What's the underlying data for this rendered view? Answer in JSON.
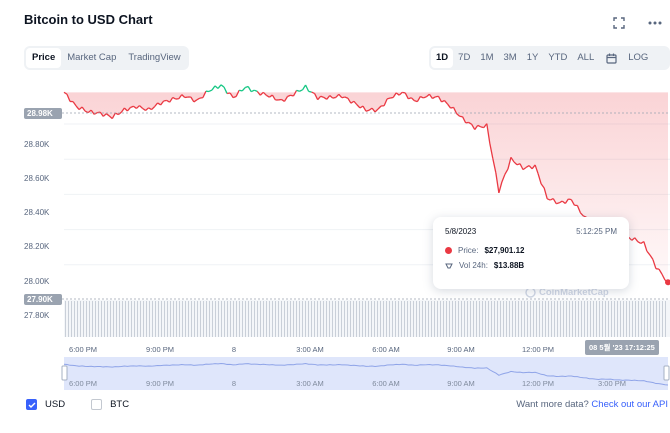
{
  "header": {
    "title": "Bitcoin to USD Chart",
    "fullscreen_icon": "fullscreen-icon",
    "more_icon": "more-horizontal-icon"
  },
  "view_tabs": [
    {
      "label": "Price",
      "active": true
    },
    {
      "label": "Market Cap",
      "active": false
    },
    {
      "label": "TradingView",
      "active": false
    }
  ],
  "range_tabs": [
    {
      "label": "1D",
      "active": true
    },
    {
      "label": "7D",
      "active": false
    },
    {
      "label": "1M",
      "active": false
    },
    {
      "label": "3M",
      "active": false
    },
    {
      "label": "1Y",
      "active": false
    },
    {
      "label": "YTD",
      "active": false
    },
    {
      "label": "ALL",
      "active": false
    }
  ],
  "calendar_icon": "calendar-icon",
  "log_label": "LOG",
  "y_axis": {
    "ticks": [
      "28.80K",
      "28.60K",
      "28.40K",
      "28.20K",
      "28.00K"
    ],
    "open_tag": "28.98K",
    "current_tag": "27.90K",
    "volume_tick": "27.80K"
  },
  "x_axis": {
    "ticks": [
      "6:00 PM",
      "9:00 PM",
      "8",
      "3:00 AM",
      "6:00 AM",
      "9:00 AM",
      "12:00 PM"
    ],
    "current_date_tag": "08 5월 '23   17:12:25"
  },
  "navigator_axis": [
    "6:00 PM",
    "9:00 PM",
    "8",
    "3:00 AM",
    "6:00 AM",
    "9:00 AM",
    "12:00 PM",
    "3:00 PM"
  ],
  "tooltip": {
    "date": "5/8/2023",
    "time": "5:12:25 PM",
    "price_label": "Price:",
    "price_value": "$27,901.12",
    "vol_label": "Vol 24h:",
    "vol_value": "$13.88B"
  },
  "watermark": "CoinMarketCap",
  "legend": {
    "usd": "USD",
    "btc": "BTC"
  },
  "footer": {
    "prompt": "Want more data?",
    "link": "Check out our API"
  },
  "colors": {
    "up": "#16c784",
    "down": "#ea3943",
    "accent": "#3861fb"
  },
  "chart_data": {
    "type": "line",
    "ylim": [
      27800,
      29050
    ],
    "open_price": 28980,
    "current_price": 27901.12,
    "series": [
      {
        "x": [
          0,
          0.02,
          0.04,
          0.06,
          0.08,
          0.1,
          0.12,
          0.14,
          0.16,
          0.18,
          0.2,
          0.22,
          0.24,
          0.26,
          0.28,
          0.3,
          0.32,
          0.34,
          0.36,
          0.38,
          0.4,
          0.42,
          0.44,
          0.46,
          0.48,
          0.5,
          0.52,
          0.54,
          0.56,
          0.58,
          0.6,
          0.62,
          0.64,
          0.66,
          0.68,
          0.7,
          0.72,
          0.74,
          0.76,
          0.78,
          0.8,
          0.82,
          0.84,
          0.86,
          0.88,
          0.9,
          0.92,
          0.94,
          0.96,
          0.98,
          1.0
        ],
        "y": [
          28980,
          28900,
          28870,
          28860,
          28840,
          28880,
          28900,
          28880,
          28920,
          28940,
          28960,
          28930,
          28990,
          29020,
          28950,
          29010,
          28980,
          28960,
          28930,
          28970,
          29010,
          28950,
          28950,
          28960,
          28920,
          28880,
          28880,
          28950,
          28980,
          28930,
          28960,
          28950,
          28900,
          28830,
          28780,
          28790,
          28420,
          28600,
          28550,
          28560,
          28380,
          28350,
          28370,
          28280,
          28200,
          28210,
          28160,
          28150,
          28120,
          27990,
          27901
        ]
      }
    ]
  }
}
